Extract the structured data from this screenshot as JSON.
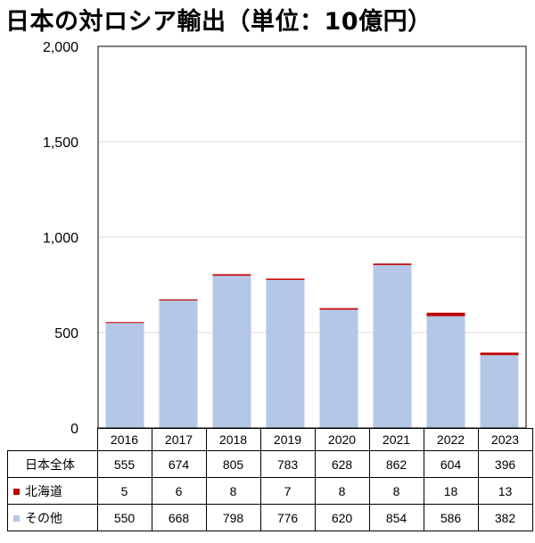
{
  "title": "日本の対ロシア輸出（単位：10億円）",
  "colors": {
    "hokkaido": "#c00000",
    "other": "#b4c7e7",
    "grid": "#d9d9d9"
  },
  "chart_data": {
    "type": "bar",
    "stacked": true,
    "categories": [
      "2016",
      "2017",
      "2018",
      "2019",
      "2020",
      "2021",
      "2022",
      "2023"
    ],
    "series": [
      {
        "name": "その他",
        "values": [
          550,
          668,
          798,
          776,
          620,
          854,
          586,
          382
        ]
      },
      {
        "name": "北海道",
        "values": [
          5,
          6,
          8,
          7,
          8,
          8,
          18,
          13
        ]
      }
    ],
    "totals_label": "日本全体",
    "totals": [
      555,
      674,
      805,
      783,
      628,
      862,
      604,
      396
    ],
    "ylim": [
      0,
      2000
    ],
    "yticks": [
      0,
      500,
      1000,
      1500,
      2000
    ],
    "ytick_labels": [
      "0",
      "500",
      "1,000",
      "1,500",
      "2,000"
    ],
    "grid": true
  }
}
